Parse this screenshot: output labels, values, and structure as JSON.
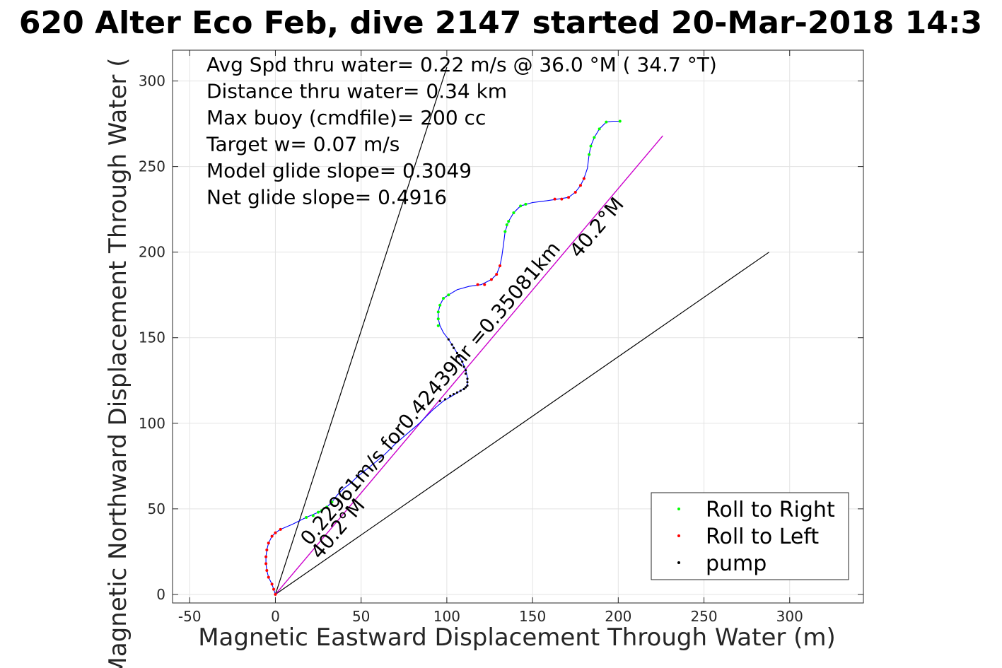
{
  "chart_data": {
    "type": "line",
    "title": "620 Alter Eco Feb, dive 2147 started 20-Mar-2018 14:3",
    "xlabel": "Magnetic Eastward Displacement Through Water (m)",
    "ylabel": "Magnetic Northward Displacement Through Water (",
    "xlim": [
      -60,
      343
    ],
    "ylim": [
      -5,
      318
    ],
    "xticks": [
      -50,
      0,
      50,
      100,
      150,
      200,
      250,
      300
    ],
    "yticks": [
      0,
      50,
      100,
      150,
      200,
      250,
      300
    ],
    "grid": true,
    "legend_position": "bottom-right",
    "legend": [
      {
        "name": "Roll to Right",
        "color": "#00ff00"
      },
      {
        "name": "Roll to Left",
        "color": "#ff0000"
      },
      {
        "name": "pump",
        "color": "#000000"
      }
    ],
    "annotations": [
      "Avg Spd thru water=  0.22 m/s @  36.0 °M ( 34.7 °T)",
      "Distance thru water=  0.34 km",
      "Max buoy (cmdfile)= 200 cc",
      "Target w= 0.07 m/s",
      "Model glide slope= 0.3049",
      "Net glide slope= 0.4916"
    ],
    "heading_label": "40.2°M",
    "speed_label": "0.22961m/s for0.42439hr =0.35081km",
    "path_color": "#0000ff",
    "heading_line_color": "#cc00cc",
    "path": [
      [
        0,
        0
      ],
      [
        -1,
        3
      ],
      [
        -2,
        6
      ],
      [
        -4,
        10
      ],
      [
        -5,
        14
      ],
      [
        -5.5,
        18
      ],
      [
        -5.5,
        22
      ],
      [
        -5,
        26
      ],
      [
        -4,
        30
      ],
      [
        -2,
        34
      ],
      [
        0,
        36
      ],
      [
        3,
        38
      ],
      [
        10,
        41
      ],
      [
        18,
        45
      ],
      [
        25,
        48
      ],
      [
        30,
        51
      ],
      [
        33,
        54
      ],
      [
        36,
        58
      ],
      [
        40,
        62
      ],
      [
        44,
        65
      ],
      [
        48,
        69
      ],
      [
        53,
        73
      ],
      [
        58,
        77
      ],
      [
        64,
        82
      ],
      [
        70,
        88
      ],
      [
        77,
        94
      ],
      [
        84,
        100
      ],
      [
        92,
        108
      ],
      [
        98,
        113
      ],
      [
        103,
        116
      ],
      [
        108,
        119
      ],
      [
        111,
        121
      ],
      [
        112,
        123
      ],
      [
        112,
        127
      ],
      [
        111,
        131
      ],
      [
        109,
        136
      ],
      [
        106,
        141
      ],
      [
        103,
        146
      ],
      [
        101,
        149
      ],
      [
        98,
        153
      ],
      [
        96,
        157
      ],
      [
        95,
        161
      ],
      [
        95,
        165
      ],
      [
        96,
        169
      ],
      [
        98,
        173
      ],
      [
        101,
        175
      ],
      [
        106,
        178
      ],
      [
        113,
        180
      ],
      [
        120,
        181
      ],
      [
        126,
        184
      ],
      [
        129,
        187
      ],
      [
        131,
        192
      ],
      [
        132,
        197
      ],
      [
        133,
        204
      ],
      [
        134,
        212
      ],
      [
        136,
        218
      ],
      [
        139,
        223
      ],
      [
        143,
        227
      ],
      [
        150,
        229
      ],
      [
        158,
        230
      ],
      [
        165,
        231
      ],
      [
        171,
        232
      ],
      [
        175,
        235
      ],
      [
        178,
        239
      ],
      [
        180,
        243
      ],
      [
        182,
        249
      ],
      [
        183,
        257
      ],
      [
        184,
        262
      ],
      [
        186,
        267
      ],
      [
        189,
        272
      ],
      [
        193,
        276
      ],
      [
        197,
        276.5
      ],
      [
        201,
        276.5
      ]
    ],
    "heading_line": [
      [
        0,
        0
      ],
      [
        226,
        268
      ]
    ],
    "envelope_lines": [
      [
        [
          0,
          0
        ],
        [
          100,
          308
        ]
      ],
      [
        [
          0,
          0
        ],
        [
          288,
          200
        ]
      ]
    ],
    "markers": {
      "roll_right": [
        [
          18,
          45
        ],
        [
          22,
          46
        ],
        [
          25,
          48
        ],
        [
          27,
          49
        ],
        [
          30,
          51
        ],
        [
          33,
          54
        ],
        [
          95,
          157
        ],
        [
          95,
          161
        ],
        [
          95,
          165
        ],
        [
          96,
          169
        ],
        [
          98,
          173
        ],
        [
          101,
          175
        ],
        [
          134,
          212
        ],
        [
          135,
          216
        ],
        [
          136,
          218
        ],
        [
          139,
          223
        ],
        [
          143,
          227
        ],
        [
          146,
          228
        ],
        [
          183,
          257
        ],
        [
          184,
          262
        ],
        [
          186,
          267
        ],
        [
          189,
          272
        ],
        [
          193,
          276
        ],
        [
          201,
          276.5
        ]
      ],
      "roll_left": [
        [
          0,
          0
        ],
        [
          -1,
          3
        ],
        [
          -2,
          6
        ],
        [
          -4,
          10
        ],
        [
          -5,
          14
        ],
        [
          -5.5,
          18
        ],
        [
          -5.5,
          22
        ],
        [
          -5,
          26
        ],
        [
          -4,
          30
        ],
        [
          -2,
          34
        ],
        [
          0,
          36
        ],
        [
          3,
          38
        ],
        [
          118,
          181
        ],
        [
          122,
          181
        ],
        [
          126,
          184
        ],
        [
          129,
          187
        ],
        [
          131,
          192
        ],
        [
          163,
          231
        ],
        [
          167,
          231
        ],
        [
          171,
          232
        ],
        [
          175,
          235
        ],
        [
          178,
          239
        ],
        [
          180,
          243
        ]
      ],
      "pump": [
        [
          96,
          113
        ],
        [
          99,
          114
        ],
        [
          102,
          116
        ],
        [
          104,
          117
        ],
        [
          106,
          118
        ],
        [
          108,
          119
        ],
        [
          110,
          120
        ],
        [
          111,
          121
        ],
        [
          112,
          122
        ],
        [
          112,
          124
        ],
        [
          112,
          126
        ],
        [
          111,
          129
        ],
        [
          111,
          131
        ],
        [
          110,
          133
        ],
        [
          109,
          136
        ],
        [
          107,
          139
        ],
        [
          106,
          141
        ],
        [
          104,
          144
        ],
        [
          103,
          146
        ],
        [
          101,
          149
        ]
      ]
    }
  }
}
